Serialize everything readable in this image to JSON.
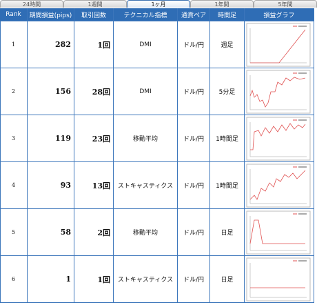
{
  "tabs": [
    "24時間",
    "1週間",
    "1ヶ月",
    "1年間",
    "5年間"
  ],
  "table": {
    "headers": [
      "Rank",
      "期間損益(pips)",
      "取引回数",
      "テクニカル指標",
      "通貨ペア",
      "時間足",
      "損益グラフ"
    ],
    "rows": [
      {
        "rank": "1",
        "pips": "282",
        "trades": "1回",
        "indicator": "DMI",
        "pair": "ドル/円",
        "timeframe": "週足"
      },
      {
        "rank": "2",
        "pips": "156",
        "trades": "28回",
        "indicator": "DMI",
        "pair": "ドル/円",
        "timeframe": "5分足"
      },
      {
        "rank": "3",
        "pips": "119",
        "trades": "23回",
        "indicator": "移動平均",
        "pair": "ドル/円",
        "timeframe": "1時間足"
      },
      {
        "rank": "4",
        "pips": "93",
        "trades": "13回",
        "indicator": "ストキャスティクス",
        "pair": "ドル/円",
        "timeframe": "1時間足"
      },
      {
        "rank": "5",
        "pips": "58",
        "trades": "2回",
        "indicator": "移動平均",
        "pair": "ドル/円",
        "timeframe": "日足"
      },
      {
        "rank": "6",
        "pips": "1",
        "trades": "1回",
        "indicator": "ストキャスティクス",
        "pair": "ドル/円",
        "timeframe": "日足"
      }
    ]
  }
}
